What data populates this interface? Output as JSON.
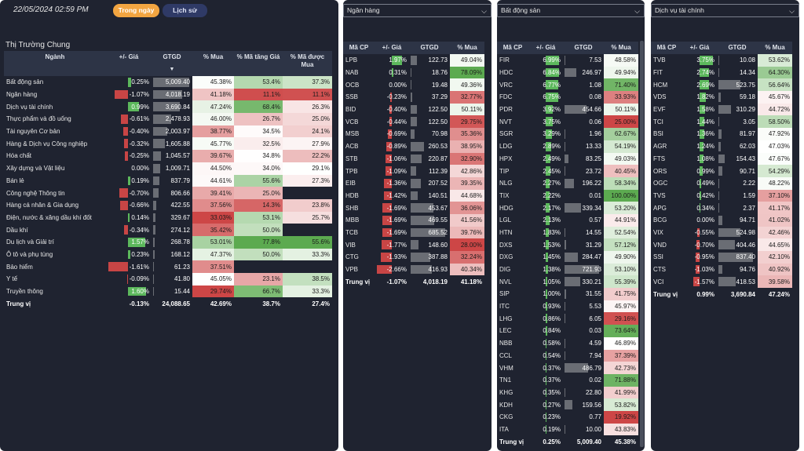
{
  "header": {
    "datetime": "22/05/2024 02:59 PM",
    "btn_today": "Trong ngày",
    "btn_history": "Lịch sử"
  },
  "market": {
    "title": "Thị Trường Chung",
    "cols": [
      "Ngành",
      "+/- Giá",
      "GTGD",
      "% Mua",
      "% Mã tăng Giá",
      "% Mã được Mua"
    ],
    "sort_icon": "sort-desc-icon",
    "rows": [
      [
        "Bất động sản",
        0.25,
        "5,009.40",
        5009.4,
        "45.38%",
        45.38,
        "53.4%",
        53.4,
        "37.3%",
        37.3
      ],
      [
        "Ngân hàng",
        -1.07,
        "4,018.19",
        4018.19,
        "41.18%",
        41.18,
        "11.1%",
        11.1,
        "11.1%",
        11.1
      ],
      [
        "Dịch vụ tài chính",
        0.99,
        "3,690.84",
        3690.84,
        "47.24%",
        47.24,
        "68.4%",
        68.4,
        "26.3%",
        26.3
      ],
      [
        "Thực phẩm và đồ uống",
        -0.61,
        "2,478.93",
        2478.93,
        "46.00%",
        46.0,
        "26.7%",
        26.7,
        "25.0%",
        25.0
      ],
      [
        "Tài nguyên Cơ bản",
        -0.4,
        "2,003.97",
        2003.97,
        "38.77%",
        38.77,
        "34.5%",
        34.5,
        "24.1%",
        24.1
      ],
      [
        "Hàng & Dịch vụ Công nghiệp",
        -0.32,
        "1,605.88",
        1605.88,
        "45.77%",
        45.77,
        "32.5%",
        32.5,
        "27.9%",
        27.9
      ],
      [
        "Hóa chất",
        -0.25,
        "1,045.57",
        1045.57,
        "39.67%",
        39.67,
        "34.8%",
        34.8,
        "22.2%",
        22.2
      ],
      [
        "Xây dựng và Vật liệu",
        0.0,
        "1,009.71",
        1009.71,
        "44.50%",
        44.5,
        "34.0%",
        34.0,
        "29.1%",
        29.1
      ],
      [
        "Bán lẻ",
        0.19,
        "837.79",
        837.79,
        "44.61%",
        44.61,
        "55.6%",
        55.6,
        "27.3%",
        27.3
      ],
      [
        "Công nghệ Thông tin",
        -0.7,
        "806.66",
        806.66,
        "39.41%",
        39.41,
        "25.0%",
        25.0,
        "",
        null
      ],
      [
        "Hàng cá nhân & Gia dụng",
        -0.66,
        "422.55",
        422.55,
        "37.56%",
        37.56,
        "14.3%",
        14.3,
        "23.8%",
        23.8
      ],
      [
        "Điện, nước & xăng dầu khí đốt",
        0.14,
        "329.67",
        329.67,
        "33.03%",
        33.03,
        "53.1%",
        53.1,
        "25.7%",
        25.7
      ],
      [
        "Dầu khí",
        -0.34,
        "274.12",
        274.12,
        "35.42%",
        35.42,
        "50.0%",
        50.0,
        "",
        null
      ],
      [
        "Du lịch và Giải trí",
        1.57,
        "268.78",
        268.78,
        "53.01%",
        53.01,
        "77.8%",
        77.8,
        "55.6%",
        55.6
      ],
      [
        "Ô tô và phụ tùng",
        0.23,
        "168.12",
        168.12,
        "47.37%",
        47.37,
        "50.0%",
        50.0,
        "33.3%",
        33.3
      ],
      [
        "Bảo hiểm",
        -1.61,
        "61.23",
        61.23,
        "37.51%",
        37.51,
        "",
        null,
        "",
        null
      ],
      [
        "Y tế",
        -0.09,
        "41.80",
        41.8,
        "45.05%",
        45.05,
        "23.1%",
        23.1,
        "38.5%",
        38.5
      ],
      [
        "Truyền thông",
        1.6,
        "15.44",
        15.44,
        "29.74%",
        29.74,
        "66.7%",
        66.7,
        "33.3%",
        33.3
      ]
    ],
    "foot": [
      "Trung vị",
      "-0.13%",
      "24,088.65",
      "42.69%",
      "38.7%",
      "27.4%"
    ]
  },
  "stocks": [
    {
      "dropdown": "Ngân hàng",
      "cols": [
        "Mã CP",
        "+/- Giá",
        "GTGD",
        "% Mua"
      ],
      "rows": [
        [
          "LPB",
          1.97,
          "122.73",
          122.73,
          "49.04%",
          49.04
        ],
        [
          "NAB",
          0.31,
          "18.76",
          18.76,
          "78.09%",
          78.09
        ],
        [
          "OCB",
          0.0,
          "19.48",
          19.48,
          "49.36%",
          49.36
        ],
        [
          "SSB",
          -0.23,
          "37.29",
          37.29,
          "32.77%",
          32.77
        ],
        [
          "BID",
          -0.4,
          "122.50",
          122.5,
          "50.11%",
          50.11
        ],
        [
          "VCB",
          -0.44,
          "122.50",
          122.5,
          "29.75%",
          29.75
        ],
        [
          "MSB",
          -0.69,
          "70.98",
          70.98,
          "35.36%",
          35.36
        ],
        [
          "ACB",
          -0.89,
          "260.53",
          260.53,
          "38.95%",
          38.95
        ],
        [
          "STB",
          -1.06,
          "220.87",
          220.87,
          "32.90%",
          32.9
        ],
        [
          "TPB",
          -1.09,
          "112.39",
          112.39,
          "42.86%",
          42.86
        ],
        [
          "EIB",
          -1.36,
          "207.52",
          207.52,
          "39.35%",
          39.35
        ],
        [
          "HDB",
          -1.42,
          "140.51",
          140.51,
          "44.68%",
          44.68
        ],
        [
          "SHB",
          -1.69,
          "453.67",
          453.67,
          "36.06%",
          36.06
        ],
        [
          "MBB",
          -1.69,
          "469.55",
          469.55,
          "41.56%",
          41.56
        ],
        [
          "TCB",
          -1.69,
          "685.52",
          685.52,
          "39.76%",
          39.76
        ],
        [
          "VIB",
          -1.77,
          "148.60",
          148.6,
          "28.00%",
          28.0
        ],
        [
          "CTG",
          -1.93,
          "387.88",
          387.88,
          "32.24%",
          32.24
        ],
        [
          "VPB",
          -2.66,
          "416.93",
          416.93,
          "40.34%",
          40.34
        ]
      ],
      "foot": [
        "Trung vị",
        "-1.07%",
        "4,018.19",
        "41.18%"
      ]
    },
    {
      "dropdown": "Bất động sản",
      "cols": [
        "Mã CP",
        "+/- Giá",
        "GTGD",
        "% Mua"
      ],
      "rows": [
        [
          "FIR",
          6.99,
          "7.53",
          7.53,
          "48.58%",
          48.58
        ],
        [
          "HDC",
          6.84,
          "246.97",
          246.97,
          "49.94%",
          49.94
        ],
        [
          "VRC",
          6.77,
          "1.08",
          1.08,
          "71.40%",
          71.4
        ],
        [
          "FDC",
          6.75,
          "0.08",
          0.08,
          "33.93%",
          33.93
        ],
        [
          "PDR",
          3.92,
          "454.66",
          454.66,
          "50.11%",
          50.11
        ],
        [
          "NVT",
          3.75,
          "0.06",
          0.06,
          "25.00%",
          25.0
        ],
        [
          "SGR",
          3.29,
          "1.96",
          1.96,
          "62.67%",
          62.67
        ],
        [
          "LDG",
          2.89,
          "13.33",
          13.33,
          "54.19%",
          54.19
        ],
        [
          "HPX",
          2.49,
          "83.25",
          83.25,
          "49.03%",
          49.03
        ],
        [
          "TIP",
          2.45,
          "23.72",
          23.72,
          "40.45%",
          40.45
        ],
        [
          "NLG",
          2.27,
          "196.22",
          196.22,
          "58.34%",
          58.34
        ],
        [
          "TIX",
          2.22,
          "0.01",
          0.01,
          "100.00%",
          100.0
        ],
        [
          "HDG",
          2.17,
          "339.34",
          339.34,
          "53.20%",
          53.2
        ],
        [
          "LGL",
          2.13,
          "0.57",
          0.57,
          "44.91%",
          44.91
        ],
        [
          "HTN",
          1.83,
          "14.55",
          14.55,
          "52.54%",
          52.54
        ],
        [
          "DXS",
          1.53,
          "31.29",
          31.29,
          "57.12%",
          57.12
        ],
        [
          "DXG",
          1.45,
          "284.47",
          284.47,
          "49.90%",
          49.9
        ],
        [
          "DIG",
          1.38,
          "721.93",
          721.93,
          "53.10%",
          53.1
        ],
        [
          "NVL",
          1.05,
          "330.21",
          330.21,
          "55.39%",
          55.39
        ],
        [
          "SIP",
          1.0,
          "31.55",
          31.55,
          "41.75%",
          41.75
        ],
        [
          "ITC",
          0.93,
          "5.53",
          5.53,
          "45.97%",
          45.97
        ],
        [
          "LHG",
          0.86,
          "6.05",
          6.05,
          "29.16%",
          29.16
        ],
        [
          "LEC",
          0.84,
          "0.03",
          0.03,
          "73.64%",
          73.64
        ],
        [
          "NBB",
          0.58,
          "4.59",
          4.59,
          "46.89%",
          46.89
        ],
        [
          "CCL",
          0.54,
          "7.94",
          7.94,
          "37.39%",
          37.39
        ],
        [
          "VHM",
          0.37,
          "486.79",
          486.79,
          "42.73%",
          42.73
        ],
        [
          "TN1",
          0.37,
          "0.02",
          0.02,
          "71.88%",
          71.88
        ],
        [
          "KHG",
          0.35,
          "22.80",
          22.8,
          "41.99%",
          41.99
        ],
        [
          "KDH",
          0.27,
          "159.56",
          159.56,
          "53.82%",
          53.82
        ],
        [
          "CKG",
          0.23,
          "0.77",
          0.77,
          "19.92%",
          19.92
        ],
        [
          "ITA",
          0.19,
          "10.00",
          10.0,
          "43.83%",
          43.83
        ]
      ],
      "foot": [
        "Trung vị",
        "0.25%",
        "5,009.40",
        "45.38%"
      ]
    },
    {
      "dropdown": "Dịch vụ tài chính",
      "cols": [
        "Mã CP",
        "+/- Giá",
        "GTGD",
        "% Mua"
      ],
      "rows": [
        [
          "TVB",
          3.75,
          "10.08",
          10.08,
          "53.62%",
          53.62
        ],
        [
          "FIT",
          2.74,
          "14.34",
          14.34,
          "64.30%",
          64.3
        ],
        [
          "HCM",
          2.69,
          "523.75",
          523.75,
          "56.64%",
          56.64
        ],
        [
          "VDS",
          1.82,
          "59.18",
          59.18,
          "45.67%",
          45.67
        ],
        [
          "EVF",
          1.58,
          "310.29",
          310.29,
          "44.72%",
          44.72
        ],
        [
          "TCI",
          1.44,
          "3.05",
          3.05,
          "58.50%",
          58.5
        ],
        [
          "BSI",
          1.36,
          "81.97",
          81.97,
          "47.92%",
          47.92
        ],
        [
          "AGR",
          1.24,
          "62.03",
          62.03,
          "47.03%",
          47.03
        ],
        [
          "FTS",
          1.08,
          "154.43",
          154.43,
          "47.67%",
          47.67
        ],
        [
          "ORS",
          0.99,
          "90.71",
          90.71,
          "54.29%",
          54.29
        ],
        [
          "OGC",
          0.49,
          "2.22",
          2.22,
          "48.22%",
          48.22
        ],
        [
          "TVS",
          0.42,
          "1.59",
          1.59,
          "37.10%",
          37.1
        ],
        [
          "APG",
          0.34,
          "2.37",
          2.37,
          "41.17%",
          41.17
        ],
        [
          "BCG",
          0.0,
          "94.71",
          94.71,
          "41.02%",
          41.02
        ],
        [
          "VIX",
          -0.55,
          "524.98",
          524.98,
          "42.46%",
          42.46
        ],
        [
          "VND",
          -0.7,
          "404.46",
          404.46,
          "44.65%",
          44.65
        ],
        [
          "SSI",
          -0.95,
          "837.40",
          837.4,
          "42.10%",
          42.1
        ],
        [
          "CTS",
          -1.03,
          "94.76",
          94.76,
          "40.92%",
          40.92
        ],
        [
          "VCI",
          -1.57,
          "418.53",
          418.53,
          "39.58%",
          39.58
        ]
      ],
      "foot": [
        "Trung vị",
        "0.99%",
        "3,690.84",
        "47.24%"
      ]
    }
  ],
  "colors": {
    "panel": "#1f2330",
    "header": "#2d3446",
    "pos": "#5cb85c",
    "neg": "#c84545",
    "bar": "#6a6d74",
    "accent": "#f2a541"
  }
}
